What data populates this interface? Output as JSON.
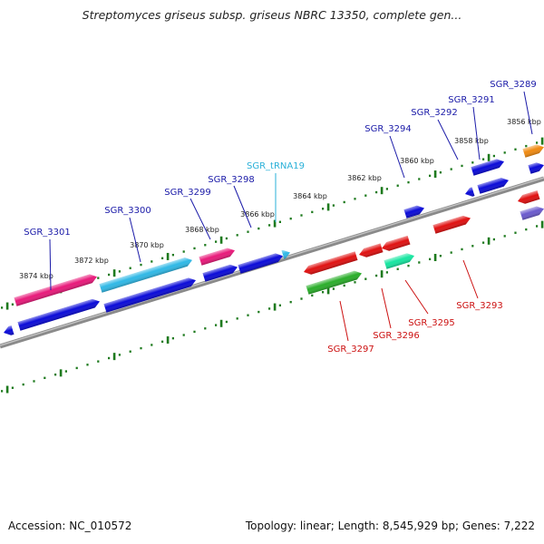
{
  "title": "Streptomyces griseus subsp. griseus NBRC 13350, complete gen...",
  "footer": {
    "accession": "Accession: NC_010572",
    "info": "Topology: linear; Length: 8,545,929 bp; Genes: 7,222"
  },
  "ruler": [
    {
      "label": "3874 kbp"
    },
    {
      "label": "3872 kbp"
    },
    {
      "label": "3870 kbp"
    },
    {
      "label": "3868 kbp"
    },
    {
      "label": "3866 kbp"
    },
    {
      "label": "3864 kbp"
    },
    {
      "label": "3862 kbp"
    },
    {
      "label": "3860 kbp"
    },
    {
      "label": "3858 kbp"
    },
    {
      "label": "3856 kbp"
    }
  ],
  "genes_top": [
    {
      "label": "SGR_3301",
      "color": "#1a1aa8"
    },
    {
      "label": "SGR_3300",
      "color": "#1a1aa8"
    },
    {
      "label": "SGR_3299",
      "color": "#1a1aa8"
    },
    {
      "label": "SGR_3298",
      "color": "#1a1aa8"
    },
    {
      "label": "SGR_tRNA19",
      "color": "#29b0d8"
    },
    {
      "label": "SGR_3294",
      "color": "#1a1aa8"
    },
    {
      "label": "SGR_3292",
      "color": "#1a1aa8"
    },
    {
      "label": "SGR_3291",
      "color": "#1a1aa8"
    },
    {
      "label": "SGR_3289",
      "color": "#1a1aa8"
    }
  ],
  "genes_bottom": [
    {
      "label": "SGR_3297",
      "color": "#cc1111"
    },
    {
      "label": "SGR_3296",
      "color": "#cc1111"
    },
    {
      "label": "SGR_3295",
      "color": "#cc1111"
    },
    {
      "label": "SGR_3293",
      "color": "#cc1111"
    }
  ],
  "colors": {
    "pink": "#e8197a",
    "cyan": "#2fb8e6",
    "blue": "#0a0ad8",
    "red": "#e01010",
    "green": "#2aae2a",
    "teal": "#16e6a0",
    "orange": "#f08a10",
    "purple": "#6a5acd",
    "ruler": "#1e7a1e",
    "backbone": "#8a8a8a"
  }
}
